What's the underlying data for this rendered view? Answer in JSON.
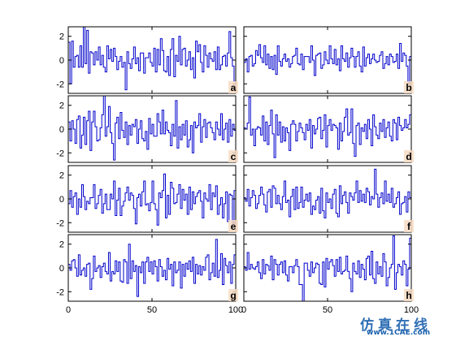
{
  "colors": {
    "series": "#0000cc",
    "axis": "#000000",
    "letter_bg": "#f7dcc3"
  },
  "chart_data": {
    "type": "line",
    "layout": "grid-4x2-small-multiples",
    "step_style": "stairs",
    "xlim": [
      0,
      100
    ],
    "ylim": [
      -2.8,
      2.8
    ],
    "grid": false,
    "legend": "none",
    "xticks": [
      0,
      50,
      100
    ],
    "yticks": [
      -2,
      0,
      2
    ],
    "panels": [
      {
        "label": "a",
        "values": [
          1.5,
          -2.0,
          1.6,
          -0.6,
          0.3,
          0.4,
          -0.6,
          1.2,
          -0.6,
          3.0,
          -0.3,
          2.5,
          -1.1,
          0.7,
          0.6,
          -0.4,
          0.7,
          0.0,
          1.1,
          -0.4,
          0.4,
          -0.6,
          -1.0,
          1.2,
          0.1,
          0.9,
          -0.1,
          1.0,
          0.3,
          -0.8,
          -0.1,
          0.3,
          -0.6,
          -0.2,
          -2.5,
          0.7,
          -0.3,
          -0.7,
          0.1,
          1.1,
          -0.3,
          0.2,
          -0.9,
          0.6,
          0.6,
          -1.1,
          0.2,
          0.2,
          0.6,
          -0.2,
          -0.5,
          1.0,
          -1.0,
          0.9,
          -0.4,
          1.8,
          0.8,
          -0.9,
          -1.0,
          0.3,
          -1.3,
          0.9,
          1.8,
          -1.4,
          0.4,
          -0.1,
          2.0,
          -0.4,
          0.9,
          1.0,
          -0.5,
          0.0,
          0.7,
          -0.8,
          0.2,
          -1.5,
          1.6,
          0.7,
          1.3,
          -0.2,
          -1.0,
          1.2,
          0.4,
          -0.6,
          0.6,
          0.1,
          -0.1,
          0.7,
          -0.8,
          1.1,
          -0.8,
          -0.4,
          0.3,
          0.4,
          -0.5,
          0.6,
          2.4,
          0.2,
          -0.5,
          -1.8
        ]
      },
      {
        "label": "b",
        "values": [
          -0.2,
          0.1,
          -1.0,
          0.3,
          0.4,
          -0.5,
          -0.3,
          0.8,
          0.4,
          1.3,
          0.2,
          -0.2,
          1.2,
          -0.4,
          0.5,
          -0.7,
          0.3,
          -0.8,
          0.4,
          -1.2,
          1.2,
          -0.1,
          -0.5,
          0.1,
          0.5,
          -0.1,
          0.1,
          -0.6,
          -0.3,
          0.3,
          0.4,
          1.0,
          -0.3,
          -0.4,
          0.5,
          -0.8,
          0.3,
          0.3,
          0.3,
          -0.2,
          1.2,
          0.0,
          -1.3,
          0.4,
          0.5,
          0.6,
          -0.7,
          -0.4,
          0.7,
          0.0,
          -0.3,
          1.2,
          0.1,
          -0.3,
          0.9,
          -0.4,
          0.1,
          -0.9,
          1.2,
          0.1,
          -0.1,
          0.6,
          -0.6,
          0.2,
          1.0,
          0.3,
          -0.6,
          0.3,
          0.7,
          -0.5,
          -1.0,
          1.1,
          -0.5,
          0.2,
          0.5,
          -0.3,
          0.1,
          0.5,
          0.0,
          -0.2,
          -0.1,
          0.4,
          0.7,
          -0.7,
          -0.3,
          0.3,
          -0.4,
          0.5,
          0.3,
          -0.2,
          -0.1,
          0.5,
          -0.7,
          1.4,
          -0.1,
          0.6,
          0.4,
          -0.5,
          -1.9,
          0.3
        ]
      },
      {
        "label": "c",
        "values": [
          0.6,
          -1.0,
          0.7,
          0.0,
          -1.2,
          0.8,
          1.1,
          -1.6,
          -0.5,
          1.0,
          -1.3,
          0.7,
          1.5,
          -1.8,
          0.6,
          1.5,
          0.2,
          -1.0,
          -0.9,
          0.1,
          1.2,
          2.9,
          -0.6,
          0.2,
          1.9,
          -0.3,
          -1.2,
          -2.6,
          0.5,
          1.0,
          -0.8,
          1.4,
          -0.1,
          -0.7,
          0.6,
          -1.3,
          0.3,
          -0.5,
          0.4,
          0.2,
          0.8,
          -1.2,
          0.0,
          0.7,
          -0.8,
          -1.0,
          -0.2,
          -1.7,
          0.9,
          -0.4,
          0.4,
          -0.6,
          -0.6,
          1.3,
          0.6,
          -0.4,
          1.6,
          -0.4,
          0.6,
          -0.1,
          -0.3,
          -1.4,
          0.4,
          -0.6,
          2.4,
          -1.6,
          0.2,
          -0.9,
          0.4,
          -0.5,
          0.7,
          -1.5,
          -0.9,
          0.3,
          -2.0,
          0.6,
          0.1,
          0.3,
          1.3,
          -1.1,
          0.2,
          0.8,
          -0.7,
          0.5,
          0.6,
          0.1,
          -0.3,
          -0.9,
          0.6,
          0.0,
          -0.5,
          1.3,
          -0.9,
          0.0,
          0.5,
          -1.1,
          0.8,
          -0.6,
          0.4,
          -0.1
        ]
      },
      {
        "label": "d",
        "values": [
          0.1,
          0.0,
          0.5,
          2.7,
          -0.5,
          0.0,
          -1.4,
          0.0,
          0.2,
          0.1,
          -0.5,
          1.1,
          -1.0,
          0.6,
          -1.3,
          0.3,
          1.6,
          -0.4,
          -2.4,
          1.2,
          -0.5,
          0.6,
          -1.1,
          0.2,
          -1.0,
          0.1,
          -0.3,
          -1.8,
          0.4,
          0.7,
          0.4,
          -1.0,
          -0.2,
          0.5,
          0.1,
          -0.3,
          -0.9,
          0.4,
          -0.1,
          0.8,
          -1.6,
          0.3,
          -0.4,
          0.0,
          0.9,
          1.0,
          -0.8,
          -0.1,
          1.2,
          -1.5,
          0.3,
          0.8,
          -0.1,
          0.4,
          0.3,
          0.1,
          -1.7,
          0.5,
          -1.0,
          -0.2,
          1.0,
          1.7,
          -0.5,
          -0.3,
          1.7,
          -1.2,
          -2.3,
          0.3,
          0.5,
          -1.3,
          0.1,
          -0.2,
          0.4,
          -0.8,
          0.8,
          0.0,
          -1.4,
          1.2,
          0.2,
          -0.5,
          -0.8,
          0.5,
          -0.2,
          0.8,
          -0.7,
          0.1,
          0.6,
          -0.6,
          -1.0,
          0.8,
          0.5,
          -0.9,
          1.0,
          0.3,
          -0.1,
          0.1,
          0.8,
          0.1,
          0.4,
          1.2
        ]
      },
      {
        "label": "e",
        "values": [
          -0.4,
          0.7,
          -0.7,
          0.2,
          0.5,
          -1.3,
          0.0,
          -0.7,
          1.2,
          0.2,
          -0.9,
          -0.2,
          -0.4,
          0.1,
          0.1,
          1.2,
          -0.8,
          -0.4,
          0.3,
          0.8,
          -1.2,
          -0.4,
          0.4,
          -0.9,
          -0.9,
          0.4,
          0.0,
          1.5,
          -1.4,
          -0.1,
          0.9,
          -1.4,
          -0.6,
          -0.2,
          0.5,
          1.0,
          -0.1,
          0.5,
          0.3,
          -0.8,
          -2.1,
          0.1,
          0.4,
          -0.6,
          0.6,
          1.5,
          -0.5,
          -0.4,
          -1.0,
          -0.3,
          1.5,
          -0.4,
          -0.9,
          -2.2,
          0.5,
          0.1,
          0.7,
          2.1,
          -1.6,
          0.3,
          -1.3,
          1.4,
          0.9,
          -0.4,
          -0.3,
          0.4,
          1.2,
          -0.8,
          0.8,
          -0.1,
          0.4,
          -1.3,
          1.0,
          -0.9,
          0.6,
          -0.4,
          0.2,
          0.5,
          0.7,
          -0.2,
          -1.6,
          0.5,
          0.0,
          -0.2,
          1.2,
          -0.9,
          0.5,
          0.2,
          1.1,
          -1.3,
          -0.5,
          0.1,
          -1.6,
          -0.4,
          0.6,
          -1.9,
          0.4,
          0.3,
          -2.2,
          0.7
        ]
      },
      {
        "label": "f",
        "values": [
          0.1,
          -0.2,
          0.8,
          -0.6,
          0.1,
          0.7,
          0.3,
          -0.8,
          -0.4,
          0.3,
          1.0,
          0.4,
          -0.5,
          -1.1,
          0.6,
          0.8,
          -0.7,
          1.1,
          0.9,
          -0.4,
          0.3,
          -0.4,
          -0.9,
          0.2,
          1.5,
          -0.3,
          -0.1,
          -1.5,
          0.2,
          0.8,
          -0.9,
          1.0,
          -0.8,
          -0.3,
          1.0,
          -0.7,
          -0.1,
          0.4,
          -0.2,
          0.5,
          -1.3,
          -0.6,
          -0.9,
          -0.1,
          0.2,
          -1.2,
          0.9,
          -1.0,
          -1.6,
          0.5,
          -0.3,
          0.0,
          -0.8,
          0.4,
          0.8,
          -1.2,
          -1.5,
          1.1,
          -0.4,
          0.3,
          0.6,
          -0.3,
          -1.2,
          0.5,
          0.2,
          -0.1,
          0.5,
          1.5,
          -0.3,
          0.7,
          -0.2,
          0.4,
          -0.3,
          0.9,
          0.6,
          -0.5,
          0.2,
          0.0,
          2.5,
          0.4,
          -0.7,
          0.1,
          0.5,
          -0.4,
          1.5,
          -0.2,
          0.4,
          -0.3,
          0.9,
          -0.7,
          -0.4,
          0.1,
          0.6,
          -1.3,
          -0.4,
          -0.3,
          0.2,
          -1.1,
          0.6,
          0.1
        ]
      },
      {
        "label": "g",
        "values": [
          0.3,
          -0.2,
          0.6,
          0.7,
          0.0,
          -0.7,
          1.1,
          -0.6,
          -0.2,
          0.0,
          -0.7,
          0.3,
          0.4,
          -1.8,
          -0.9,
          1.0,
          -0.3,
          0.0,
          0.2,
          -0.8,
          0.1,
          0.4,
          -0.3,
          -0.5,
          1.3,
          -1.1,
          -0.3,
          -0.5,
          0.6,
          -0.3,
          0.5,
          -1.1,
          -1.2,
          0.7,
          0.5,
          -1.3,
          2.0,
          -0.9,
          0.6,
          -0.3,
          0.2,
          -2.4,
          0.1,
          -0.4,
          0.5,
          -1.3,
          0.5,
          0.9,
          -0.3,
          0.5,
          -0.5,
          0.6,
          0.1,
          -1.1,
          0.7,
          0.1,
          -0.7,
          -0.2,
          -1.0,
          0.8,
          -0.1,
          0.3,
          -1.5,
          0.5,
          -0.4,
          -0.2,
          0.5,
          -1.7,
          0.3,
          -0.7,
          0.4,
          -0.1,
          0.6,
          -0.3,
          0.9,
          -1.3,
          0.3,
          -0.5,
          0.2,
          -0.6,
          0.1,
          -0.2,
          0.9,
          1.1,
          -1.0,
          -0.4,
          0.4,
          -0.7,
          2.4,
          -0.8,
          -0.2,
          1.2,
          -1.4,
          0.8,
          0.2,
          -0.4,
          0.5,
          -1.3,
          0.3,
          1.1
        ]
      },
      {
        "label": "h",
        "values": [
          0.1,
          -0.2,
          1.3,
          -0.1,
          0.3,
          0.0,
          -0.1,
          0.1,
          0.5,
          -0.4,
          -0.9,
          0.7,
          -0.5,
          0.3,
          0.2,
          -0.2,
          1.0,
          -1.0,
          0.7,
          0.3,
          -0.6,
          0.3,
          0.5,
          -0.4,
          0.6,
          -0.6,
          -1.1,
          0.1,
          0.1,
          -0.4,
          0.2,
          0.7,
          0.1,
          -1.4,
          -1.4,
          -3.2,
          0.4,
          0.4,
          -0.2,
          -0.7,
          0.5,
          -0.4,
          0.0,
          0.4,
          0.3,
          -1.3,
          -1.4,
          0.5,
          -1.6,
          0.8,
          -0.1,
          0.5,
          0.7,
          0.2,
          -0.7,
          0.7,
          -0.3,
          0.9,
          -0.5,
          -0.3,
          -0.2,
          1.0,
          -0.3,
          -0.9,
          -2.0,
          0.4,
          -0.3,
          -0.5,
          0.6,
          -0.8,
          0.3,
          -0.1,
          -1.0,
          0.8,
          1.0,
          -0.6,
          1.4,
          -0.9,
          -1.3,
          0.5,
          -0.5,
          0.1,
          -0.7,
          1.2,
          0.5,
          -1.5,
          -0.8,
          0.0,
          0.3,
          2.7,
          -1.8,
          -0.4,
          0.3,
          0.1,
          -0.6,
          0.6,
          0.3,
          -1.5,
          -0.1,
          2.5
        ]
      }
    ]
  },
  "watermark": {
    "cn": "仿真在线",
    "url": "www.1CAE.com"
  }
}
